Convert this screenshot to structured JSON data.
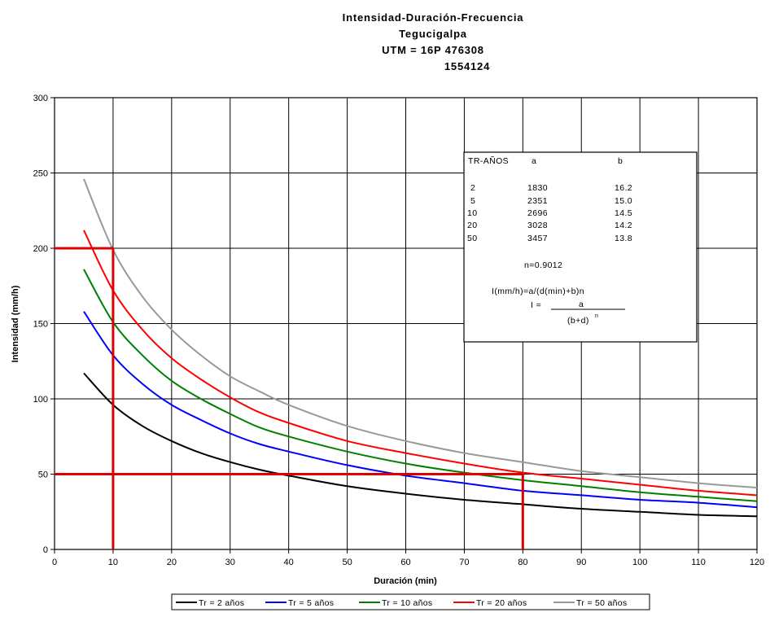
{
  "chart_data": {
    "type": "line",
    "title_lines": [
      "Intensidad-Duración-Frecuencia",
      "Tegucigalpa",
      "UTM =  16P  476308",
      "1554124"
    ],
    "xlabel": "Duración (min)",
    "ylabel": "Intensidad (mm/h)",
    "xlim": [
      0,
      120
    ],
    "ylim": [
      0,
      300
    ],
    "x_ticks": [
      0,
      10,
      20,
      30,
      40,
      50,
      60,
      70,
      80,
      90,
      100,
      110,
      120
    ],
    "y_ticks": [
      0,
      50,
      100,
      150,
      200,
      250,
      300
    ],
    "grid": true,
    "legend_position": "bottom",
    "x": [
      5,
      10,
      15,
      20,
      25,
      30,
      35,
      40,
      50,
      60,
      70,
      80,
      90,
      100,
      110,
      120
    ],
    "series": [
      {
        "name": "Tr = 2 años",
        "color": "#000000",
        "values": [
          117,
          96,
          82,
          72,
          64,
          58,
          53,
          49,
          42,
          37,
          33,
          30,
          27,
          25,
          23,
          22
        ]
      },
      {
        "name": "Tr = 5 años",
        "color": "#0000ff",
        "values": [
          158,
          129,
          110,
          96,
          86,
          77,
          70,
          65,
          56,
          49,
          44,
          39,
          36,
          33,
          31,
          28
        ]
      },
      {
        "name": "Tr = 10 años",
        "color": "#008000",
        "values": [
          186,
          151,
          129,
          112,
          100,
          90,
          81,
          75,
          65,
          57,
          51,
          46,
          42,
          38,
          35,
          32
        ]
      },
      {
        "name": "Tr = 20 años",
        "color": "#ff0000",
        "values": [
          212,
          172,
          146,
          127,
          113,
          101,
          91,
          84,
          72,
          64,
          57,
          51,
          47,
          43,
          39,
          36
        ]
      },
      {
        "name": "Tr = 50 años",
        "color": "#999999",
        "values": [
          246,
          199,
          168,
          146,
          129,
          115,
          105,
          96,
          82,
          72,
          64,
          58,
          52,
          48,
          44,
          41
        ]
      }
    ],
    "reference_lines": {
      "color": "#dd0000",
      "vertical_x": [
        10,
        80
      ],
      "vertical_top_y": [
        200,
        50
      ],
      "horizontal_y": [
        200,
        50
      ],
      "horizontal_end_x": [
        10,
        80
      ]
    },
    "info_box": {
      "headers": [
        "TR-AÑOS",
        "a",
        "b"
      ],
      "rows": [
        [
          "2",
          "1830",
          "16.2"
        ],
        [
          "5",
          "2351",
          "15.0"
        ],
        [
          "10",
          "2696",
          "14.5"
        ],
        [
          "20",
          "3028",
          "14.2"
        ],
        [
          "50",
          "3457",
          "13.8"
        ]
      ],
      "n_text": "n=0.9012",
      "formula_line": "I(mm/h)=a/(d(min)+b)n",
      "formula_lhs": "I =",
      "formula_num": "a",
      "formula_den": "(b+d)",
      "formula_exp": "n"
    }
  }
}
